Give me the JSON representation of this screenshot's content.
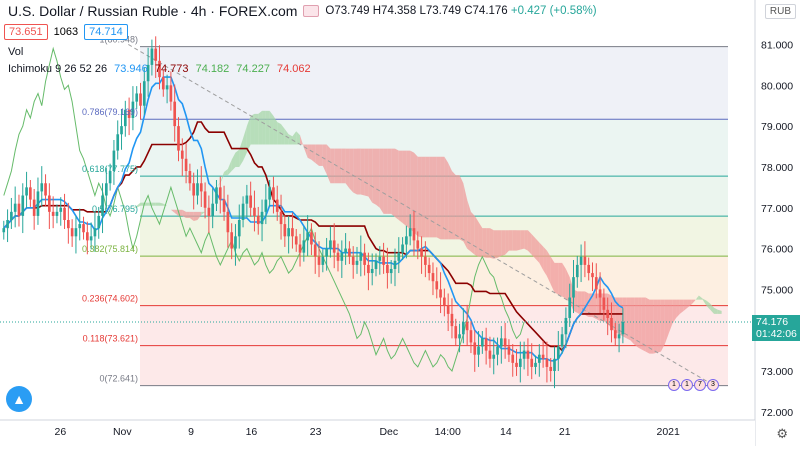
{
  "header": {
    "title": "U.S. Dollar / Russian Ruble · 4h · FOREX.com",
    "ohlc": {
      "o": "O73.749",
      "h": "H74.358",
      "l": "L73.749",
      "c": "C74.176",
      "chg": "+0.427 (+0.58%)"
    },
    "sell": "73.651",
    "spread": "1063",
    "buy": "74.714",
    "vol_label": "Vol",
    "ichimoku_label": "Ichimoku 9 26 52 26",
    "ichimoku_values": [
      "73.946",
      "74.773",
      "74.182",
      "74.227",
      "74.062"
    ],
    "ichimoku_colors": [
      "#2196f3",
      "#8b0000",
      "#4caf50",
      "#4caf50",
      "#e53935"
    ],
    "currency": "RUB",
    "price_tag": "74.176",
    "countdown": "01:42:06",
    "logo_icon": "tradingview-logo-icon",
    "settings_icon": "gear-icon",
    "events": [
      "1",
      "1",
      "7",
      "3"
    ]
  },
  "chart_data": {
    "type": "line",
    "title": "U.S. Dollar / Russian Ruble · 4h · FOREX.com",
    "ylim": [
      71.8,
      81.6
    ],
    "y_ticks": [
      "81.000",
      "80.000",
      "79.000",
      "78.000",
      "77.000",
      "76.000",
      "75.000",
      "74.000",
      "73.000",
      "72.000"
    ],
    "x_ticks": [
      {
        "label": "26",
        "x": 0.08
      },
      {
        "label": "Nov",
        "x": 0.162
      },
      {
        "label": "9",
        "x": 0.253
      },
      {
        "label": "16",
        "x": 0.333
      },
      {
        "label": "23",
        "x": 0.418
      },
      {
        "label": "Dec",
        "x": 0.515
      },
      {
        "label": "14:00",
        "x": 0.593
      },
      {
        "label": "14",
        "x": 0.67
      },
      {
        "label": "21",
        "x": 0.748
      },
      {
        "label": "2021",
        "x": 0.885
      }
    ],
    "fibonacci": [
      {
        "label": "0(72.641)",
        "level": 72.641,
        "color": "#787b86",
        "fill": "#fde4e4"
      },
      {
        "label": "0.118(73.621)",
        "level": 73.621,
        "color": "#e53935",
        "fill": "#fce4e4"
      },
      {
        "label": "0.236(74.602)",
        "level": 74.602,
        "color": "#e53935",
        "fill": "#fcebd9"
      },
      {
        "label": "0.382(75.814)",
        "level": 75.814,
        "color": "#7cb342",
        "fill": "#eef3dc"
      },
      {
        "label": "0.5(76.795)",
        "level": 76.795,
        "color": "#26a69a",
        "fill": "#e6f2ea"
      },
      {
        "label": "0.618(77.775)",
        "level": 77.775,
        "color": "#26a69a",
        "fill": "#e6f2ef"
      },
      {
        "label": "0.786(79.169)",
        "level": 79.169,
        "color": "#5c6bc0",
        "fill": "#ebedf5"
      },
      {
        "label": "1(80.948)",
        "level": 80.948,
        "color": "#787b86",
        "fill": "#f0f0f2"
      }
    ],
    "trendline": {
      "x": [
        0.17,
        0.95
      ],
      "y": [
        81.0,
        72.6
      ],
      "color": "#9e9e9e"
    },
    "close": [
      76.5,
      76.7,
      76.9,
      77.1,
      76.8,
      77.3,
      77.5,
      77.2,
      76.8,
      77.4,
      77.6,
      77.3,
      76.9,
      76.8,
      76.9,
      77.0,
      76.7,
      76.5,
      76.3,
      76.5,
      76.6,
      76.4,
      76.2,
      76.3,
      76.5,
      76.8,
      77.3,
      77.6,
      77.9,
      78.4,
      78.8,
      79.0,
      79.4,
      79.2,
      79.6,
      79.8,
      79.5,
      80.1,
      80.5,
      80.9,
      80.6,
      80.2,
      79.9,
      80.0,
      79.6,
      79.0,
      78.4,
      78.2,
      77.9,
      77.6,
      77.3,
      77.6,
      77.4,
      77.0,
      76.8,
      77.1,
      77.5,
      77.2,
      76.9,
      76.4,
      76.0,
      76.3,
      76.7,
      77.1,
      77.3,
      77.0,
      76.8,
      76.6,
      76.9,
      77.2,
      77.5,
      77.2,
      76.9,
      76.6,
      76.3,
      76.5,
      76.3,
      76.1,
      75.9,
      76.2,
      76.4,
      76.1,
      75.8,
      75.6,
      75.8,
      76.0,
      76.2,
      75.9,
      75.7,
      75.9,
      76.0,
      75.8,
      75.6,
      75.7,
      75.9,
      75.6,
      75.4,
      75.5,
      75.7,
      75.8,
      75.6,
      75.4,
      75.5,
      75.7,
      75.9,
      76.1,
      76.3,
      76.5,
      76.2,
      76.0,
      75.8,
      75.6,
      75.4,
      75.2,
      75.0,
      74.8,
      74.6,
      74.4,
      74.1,
      73.8,
      73.9,
      74.2,
      74.0,
      73.7,
      73.4,
      73.6,
      73.8,
      73.5,
      73.3,
      73.4,
      73.6,
      73.8,
      73.6,
      73.4,
      73.2,
      73.1,
      73.3,
      73.5,
      73.3,
      73.1,
      73.2,
      73.4,
      73.3,
      73.1,
      73.0,
      73.3,
      73.6,
      73.9,
      74.3,
      74.8,
      75.3,
      75.6,
      75.8,
      75.6,
      75.4,
      75.3,
      75.0,
      74.8,
      74.5,
      74.3,
      74.0,
      73.8,
      73.9,
      74.2
    ],
    "x_end": 0.825,
    "tenkan": {
      "name": "Tenkan",
      "color": "#2196f3"
    },
    "kijun": {
      "name": "Kijun",
      "color": "#8b0000"
    },
    "lagging": {
      "name": "Lagging span",
      "color": "#66bb6a"
    },
    "cloud": {
      "up_color": "#a5d6a7",
      "down_color": "#ef9a9a"
    }
  }
}
